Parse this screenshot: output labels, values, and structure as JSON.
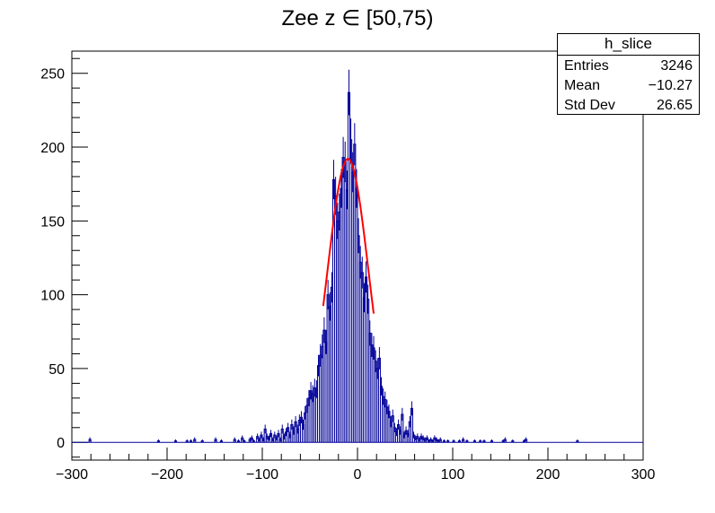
{
  "title": "Zee z ∈ [50,75)",
  "stats": {
    "name": "h_slice",
    "rows": [
      {
        "label": "Entries",
        "value": "3246"
      },
      {
        "label": "Mean",
        "value": "−10.27"
      },
      {
        "label": "Std Dev",
        "value": "26.65"
      }
    ]
  },
  "chart_data": {
    "type": "histogram",
    "xlim": [
      -300,
      300
    ],
    "ylim": [
      -12,
      265
    ],
    "xticks": [
      -300,
      -200,
      -100,
      0,
      100,
      200,
      300
    ],
    "xtick_labels": [
      "−300",
      "−200",
      "−100",
      "0",
      "100",
      "200",
      "300"
    ],
    "yticks": [
      0,
      50,
      100,
      150,
      200,
      250
    ],
    "ytick_labels": [
      "0",
      "50",
      "100",
      "150",
      "200",
      "250"
    ],
    "bin_width": 2,
    "bins": [
      {
        "x": -281,
        "y": 2
      },
      {
        "x": -209,
        "y": 1
      },
      {
        "x": -191,
        "y": 1
      },
      {
        "x": -179,
        "y": 1
      },
      {
        "x": -175,
        "y": 1
      },
      {
        "x": -171,
        "y": 2
      },
      {
        "x": -163,
        "y": 1
      },
      {
        "x": -149,
        "y": 2
      },
      {
        "x": -143,
        "y": 1
      },
      {
        "x": -129,
        "y": 2
      },
      {
        "x": -125,
        "y": 1
      },
      {
        "x": -121,
        "y": 3
      },
      {
        "x": -119,
        "y": 1
      },
      {
        "x": -113,
        "y": 2
      },
      {
        "x": -111,
        "y": 3
      },
      {
        "x": -109,
        "y": 1
      },
      {
        "x": -105,
        "y": 4
      },
      {
        "x": -103,
        "y": 2
      },
      {
        "x": -101,
        "y": 5
      },
      {
        "x": -99,
        "y": 2
      },
      {
        "x": -97,
        "y": 9
      },
      {
        "x": -95,
        "y": 4
      },
      {
        "x": -93,
        "y": 3
      },
      {
        "x": -91,
        "y": 6
      },
      {
        "x": -89,
        "y": 2
      },
      {
        "x": -87,
        "y": 5
      },
      {
        "x": -85,
        "y": 3
      },
      {
        "x": -83,
        "y": 6
      },
      {
        "x": -81,
        "y": 2
      },
      {
        "x": -79,
        "y": 9
      },
      {
        "x": -77,
        "y": 4
      },
      {
        "x": -75,
        "y": 7
      },
      {
        "x": -73,
        "y": 10
      },
      {
        "x": -71,
        "y": 5
      },
      {
        "x": -69,
        "y": 12
      },
      {
        "x": -67,
        "y": 8
      },
      {
        "x": -65,
        "y": 14
      },
      {
        "x": -63,
        "y": 9
      },
      {
        "x": -61,
        "y": 15
      },
      {
        "x": -59,
        "y": 17
      },
      {
        "x": -57,
        "y": 12
      },
      {
        "x": -55,
        "y": 20
      },
      {
        "x": -53,
        "y": 25
      },
      {
        "x": -51,
        "y": 30
      },
      {
        "x": -49,
        "y": 35
      },
      {
        "x": -47,
        "y": 33
      },
      {
        "x": -45,
        "y": 37
      },
      {
        "x": -43,
        "y": 36
      },
      {
        "x": -41,
        "y": 52
      },
      {
        "x": -39,
        "y": 59
      },
      {
        "x": -37,
        "y": 65
      },
      {
        "x": -35,
        "y": 76
      },
      {
        "x": -33,
        "y": 68
      },
      {
        "x": -31,
        "y": 100
      },
      {
        "x": -29,
        "y": 92
      },
      {
        "x": -27,
        "y": 105
      },
      {
        "x": -25,
        "y": 178
      },
      {
        "x": -23,
        "y": 167
      },
      {
        "x": -21,
        "y": 150
      },
      {
        "x": -19,
        "y": 156
      },
      {
        "x": -17,
        "y": 172
      },
      {
        "x": -15,
        "y": 193
      },
      {
        "x": -13,
        "y": 190
      },
      {
        "x": -11,
        "y": 171
      },
      {
        "x": -9,
        "y": 237
      },
      {
        "x": -7,
        "y": 205
      },
      {
        "x": -5,
        "y": 183
      },
      {
        "x": -3,
        "y": 202
      },
      {
        "x": -1,
        "y": 172
      },
      {
        "x": 1,
        "y": 140
      },
      {
        "x": 3,
        "y": 122
      },
      {
        "x": 5,
        "y": 115
      },
      {
        "x": 7,
        "y": 98
      },
      {
        "x": 9,
        "y": 112
      },
      {
        "x": 11,
        "y": 97
      },
      {
        "x": 13,
        "y": 74
      },
      {
        "x": 15,
        "y": 66
      },
      {
        "x": 17,
        "y": 64
      },
      {
        "x": 19,
        "y": 55
      },
      {
        "x": 21,
        "y": 50
      },
      {
        "x": 23,
        "y": 57
      },
      {
        "x": 25,
        "y": 38
      },
      {
        "x": 27,
        "y": 31
      },
      {
        "x": 29,
        "y": 29
      },
      {
        "x": 31,
        "y": 24
      },
      {
        "x": 33,
        "y": 21
      },
      {
        "x": 35,
        "y": 14
      },
      {
        "x": 37,
        "y": 18
      },
      {
        "x": 39,
        "y": 10
      },
      {
        "x": 41,
        "y": 7
      },
      {
        "x": 43,
        "y": 12
      },
      {
        "x": 45,
        "y": 8
      },
      {
        "x": 47,
        "y": 19
      },
      {
        "x": 49,
        "y": 5
      },
      {
        "x": 51,
        "y": 8
      },
      {
        "x": 53,
        "y": 6
      },
      {
        "x": 55,
        "y": 14
      },
      {
        "x": 57,
        "y": 23
      },
      {
        "x": 59,
        "y": 5
      },
      {
        "x": 61,
        "y": 3
      },
      {
        "x": 63,
        "y": 4
      },
      {
        "x": 65,
        "y": 2
      },
      {
        "x": 67,
        "y": 4
      },
      {
        "x": 69,
        "y": 3
      },
      {
        "x": 71,
        "y": 2
      },
      {
        "x": 73,
        "y": 3
      },
      {
        "x": 75,
        "y": 1
      },
      {
        "x": 77,
        "y": 2
      },
      {
        "x": 79,
        "y": 1
      },
      {
        "x": 81,
        "y": 3
      },
      {
        "x": 83,
        "y": 2
      },
      {
        "x": 85,
        "y": 1
      },
      {
        "x": 87,
        "y": 2
      },
      {
        "x": 91,
        "y": 1
      },
      {
        "x": 95,
        "y": 1
      },
      {
        "x": 101,
        "y": 1
      },
      {
        "x": 107,
        "y": 1
      },
      {
        "x": 111,
        "y": 2
      },
      {
        "x": 115,
        "y": 1
      },
      {
        "x": 123,
        "y": 1
      },
      {
        "x": 129,
        "y": 1
      },
      {
        "x": 133,
        "y": 1
      },
      {
        "x": 141,
        "y": 1
      },
      {
        "x": 153,
        "y": 1
      },
      {
        "x": 155,
        "y": 2
      },
      {
        "x": 163,
        "y": 1
      },
      {
        "x": 175,
        "y": 1
      },
      {
        "x": 177,
        "y": 2
      },
      {
        "x": 231,
        "y": 1
      }
    ],
    "fit": {
      "type": "gaussian",
      "mean": -10,
      "sigma": 21.5,
      "amplitude": 192,
      "range": [
        -36,
        17
      ]
    },
    "colors": {
      "histogram": "#000099",
      "fit": "#ff0000",
      "axis": "#000000"
    }
  }
}
